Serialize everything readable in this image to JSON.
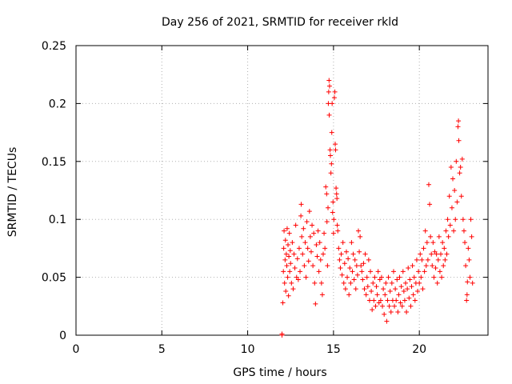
{
  "chart_data": {
    "type": "scatter",
    "title": "Day 256 of 2021, SRMTID for receiver rkld",
    "xlabel": "GPS time / hours",
    "ylabel": "SRMTID / TECUs",
    "xlim": [
      0,
      24
    ],
    "ylim": [
      0,
      0.25
    ],
    "xticks": [
      0,
      5,
      10,
      15,
      20
    ],
    "xtick_labels": [
      "0",
      "5",
      "10",
      "15",
      "20"
    ],
    "yticks": [
      0,
      0.05,
      0.1,
      0.15,
      0.2,
      0.25
    ],
    "ytick_labels": [
      "0",
      "0.05",
      "0.1",
      "0.15",
      "0.2",
      "0.25"
    ],
    "grid": true,
    "marker": "plus",
    "marker_color": "#ff0000",
    "series": [
      {
        "name": "rkld",
        "points": [
          [
            12.0,
            0.0
          ],
          [
            12.0,
            0.001
          ],
          [
            12.05,
            0.028
          ],
          [
            12.08,
            0.055
          ],
          [
            12.1,
            0.075
          ],
          [
            12.12,
            0.09
          ],
          [
            12.15,
            0.045
          ],
          [
            12.18,
            0.065
          ],
          [
            12.2,
            0.082
          ],
          [
            12.22,
            0.038
          ],
          [
            12.25,
            0.07
          ],
          [
            12.28,
            0.06
          ],
          [
            12.3,
            0.092
          ],
          [
            12.33,
            0.05
          ],
          [
            12.35,
            0.078
          ],
          [
            12.38,
            0.034
          ],
          [
            12.4,
            0.068
          ],
          [
            12.43,
            0.088
          ],
          [
            12.45,
            0.055
          ],
          [
            12.48,
            0.073
          ],
          [
            12.5,
            0.062
          ],
          [
            12.55,
            0.045
          ],
          [
            12.6,
            0.08
          ],
          [
            12.65,
            0.04
          ],
          [
            12.7,
            0.07
          ],
          [
            12.75,
            0.058
          ],
          [
            12.8,
            0.095
          ],
          [
            12.85,
            0.05
          ],
          [
            12.9,
            0.066
          ],
          [
            12.95,
            0.048
          ],
          [
            13.0,
            0.075
          ],
          [
            13.05,
            0.055
          ],
          [
            13.1,
            0.103
          ],
          [
            13.12,
            0.113
          ],
          [
            13.15,
            0.085
          ],
          [
            13.2,
            0.07
          ],
          [
            13.25,
            0.092
          ],
          [
            13.3,
            0.06
          ],
          [
            13.35,
            0.08
          ],
          [
            13.4,
            0.05
          ],
          [
            13.45,
            0.098
          ],
          [
            13.5,
            0.075
          ],
          [
            13.55,
            0.064
          ],
          [
            13.6,
            0.107
          ],
          [
            13.65,
            0.085
          ],
          [
            13.7,
            0.072
          ],
          [
            13.75,
            0.095
          ],
          [
            13.8,
            0.06
          ],
          [
            13.85,
            0.088
          ],
          [
            13.9,
            0.045
          ],
          [
            13.95,
            0.027
          ],
          [
            14.0,
            0.078
          ],
          [
            14.05,
            0.068
          ],
          [
            14.1,
            0.09
          ],
          [
            14.15,
            0.055
          ],
          [
            14.2,
            0.08
          ],
          [
            14.25,
            0.065
          ],
          [
            14.3,
            0.045
          ],
          [
            14.35,
            0.035
          ],
          [
            14.4,
            0.07
          ],
          [
            14.45,
            0.088
          ],
          [
            14.5,
            0.075
          ],
          [
            14.55,
            0.128
          ],
          [
            14.6,
            0.122
          ],
          [
            14.62,
            0.098
          ],
          [
            14.65,
            0.06
          ],
          [
            14.68,
            0.11
          ],
          [
            14.7,
            0.2
          ],
          [
            14.72,
            0.21
          ],
          [
            14.74,
            0.22
          ],
          [
            14.75,
            0.19
          ],
          [
            14.77,
            0.215
          ],
          [
            14.8,
            0.16
          ],
          [
            14.82,
            0.155
          ],
          [
            14.85,
            0.14
          ],
          [
            14.88,
            0.148
          ],
          [
            14.9,
            0.175
          ],
          [
            14.92,
            0.2
          ],
          [
            14.95,
            0.106
          ],
          [
            14.97,
            0.115
          ],
          [
            15.0,
            0.088
          ],
          [
            15.02,
            0.1
          ],
          [
            15.05,
            0.205
          ],
          [
            15.08,
            0.21
          ],
          [
            15.1,
            0.165
          ],
          [
            15.12,
            0.16
          ],
          [
            15.15,
            0.127
          ],
          [
            15.18,
            0.122
          ],
          [
            15.2,
            0.118
          ],
          [
            15.22,
            0.095
          ],
          [
            15.25,
            0.09
          ],
          [
            15.3,
            0.075
          ],
          [
            15.35,
            0.065
          ],
          [
            15.4,
            0.058
          ],
          [
            15.45,
            0.07
          ],
          [
            15.5,
            0.052
          ],
          [
            15.55,
            0.08
          ],
          [
            15.6,
            0.045
          ],
          [
            15.65,
            0.062
          ],
          [
            15.7,
            0.04
          ],
          [
            15.75,
            0.072
          ],
          [
            15.8,
            0.05
          ],
          [
            15.85,
            0.066
          ],
          [
            15.9,
            0.035
          ],
          [
            15.95,
            0.058
          ],
          [
            16.0,
            0.045
          ],
          [
            16.05,
            0.08
          ],
          [
            16.1,
            0.055
          ],
          [
            16.15,
            0.07
          ],
          [
            16.2,
            0.048
          ],
          [
            16.25,
            0.065
          ],
          [
            16.3,
            0.04
          ],
          [
            16.35,
            0.06
          ],
          [
            16.4,
            0.052
          ],
          [
            16.45,
            0.09
          ],
          [
            16.5,
            0.072
          ],
          [
            16.55,
            0.085
          ],
          [
            16.6,
            0.06
          ],
          [
            16.65,
            0.055
          ],
          [
            16.7,
            0.048
          ],
          [
            16.75,
            0.062
          ],
          [
            16.8,
            0.04
          ],
          [
            16.85,
            0.07
          ],
          [
            16.9,
            0.035
          ],
          [
            16.95,
            0.05
          ],
          [
            17.0,
            0.042
          ],
          [
            17.05,
            0.065
          ],
          [
            17.1,
            0.03
          ],
          [
            17.15,
            0.055
          ],
          [
            17.2,
            0.038
          ],
          [
            17.25,
            0.022
          ],
          [
            17.3,
            0.045
          ],
          [
            17.35,
            0.03
          ],
          [
            17.4,
            0.05
          ],
          [
            17.45,
            0.025
          ],
          [
            17.5,
            0.042
          ],
          [
            17.55,
            0.035
          ],
          [
            17.6,
            0.055
          ],
          [
            17.65,
            0.028
          ],
          [
            17.7,
            0.048
          ],
          [
            17.75,
            0.03
          ],
          [
            17.8,
            0.05
          ],
          [
            17.85,
            0.025
          ],
          [
            17.9,
            0.04
          ],
          [
            17.95,
            0.018
          ],
          [
            18.0,
            0.035
          ],
          [
            18.05,
            0.045
          ],
          [
            18.1,
            0.012
          ],
          [
            18.15,
            0.03
          ],
          [
            18.2,
            0.05
          ],
          [
            18.25,
            0.025
          ],
          [
            18.3,
            0.038
          ],
          [
            18.35,
            0.02
          ],
          [
            18.4,
            0.045
          ],
          [
            18.45,
            0.03
          ],
          [
            18.5,
            0.055
          ],
          [
            18.55,
            0.025
          ],
          [
            18.6,
            0.04
          ],
          [
            18.65,
            0.03
          ],
          [
            18.7,
            0.048
          ],
          [
            18.75,
            0.02
          ],
          [
            18.8,
            0.035
          ],
          [
            18.85,
            0.05
          ],
          [
            18.9,
            0.028
          ],
          [
            18.95,
            0.042
          ],
          [
            19.0,
            0.025
          ],
          [
            19.05,
            0.055
          ],
          [
            19.1,
            0.038
          ],
          [
            19.15,
            0.03
          ],
          [
            19.2,
            0.045
          ],
          [
            19.25,
            0.02
          ],
          [
            19.3,
            0.04
          ],
          [
            19.35,
            0.058
          ],
          [
            19.4,
            0.032
          ],
          [
            19.45,
            0.048
          ],
          [
            19.5,
            0.025
          ],
          [
            19.55,
            0.042
          ],
          [
            19.6,
            0.06
          ],
          [
            19.65,
            0.035
          ],
          [
            19.7,
            0.05
          ],
          [
            19.75,
            0.03
          ],
          [
            19.8,
            0.045
          ],
          [
            19.85,
            0.065
          ],
          [
            19.9,
            0.038
          ],
          [
            19.95,
            0.055
          ],
          [
            20.0,
            0.045
          ],
          [
            20.05,
            0.07
          ],
          [
            20.1,
            0.05
          ],
          [
            20.15,
            0.065
          ],
          [
            20.2,
            0.04
          ],
          [
            20.25,
            0.075
          ],
          [
            20.3,
            0.055
          ],
          [
            20.35,
            0.09
          ],
          [
            20.4,
            0.06
          ],
          [
            20.45,
            0.08
          ],
          [
            20.5,
            0.065
          ],
          [
            20.55,
            0.13
          ],
          [
            20.6,
            0.113
          ],
          [
            20.65,
            0.085
          ],
          [
            20.7,
            0.07
          ],
          [
            20.75,
            0.06
          ],
          [
            20.8,
            0.08
          ],
          [
            20.85,
            0.05
          ],
          [
            20.9,
            0.072
          ],
          [
            20.95,
            0.058
          ],
          [
            21.0,
            0.07
          ],
          [
            21.05,
            0.045
          ],
          [
            21.1,
            0.065
          ],
          [
            21.15,
            0.085
          ],
          [
            21.2,
            0.055
          ],
          [
            21.25,
            0.07
          ],
          [
            21.3,
            0.05
          ],
          [
            21.35,
            0.08
          ],
          [
            21.4,
            0.06
          ],
          [
            21.45,
            0.075
          ],
          [
            21.5,
            0.065
          ],
          [
            21.55,
            0.09
          ],
          [
            21.6,
            0.07
          ],
          [
            21.65,
            0.1
          ],
          [
            21.7,
            0.085
          ],
          [
            21.75,
            0.12
          ],
          [
            21.8,
            0.095
          ],
          [
            21.85,
            0.145
          ],
          [
            21.9,
            0.11
          ],
          [
            21.95,
            0.135
          ],
          [
            22.0,
            0.09
          ],
          [
            22.05,
            0.125
          ],
          [
            22.1,
            0.1
          ],
          [
            22.15,
            0.15
          ],
          [
            22.2,
            0.115
          ],
          [
            22.25,
            0.18
          ],
          [
            22.28,
            0.185
          ],
          [
            22.3,
            0.168
          ],
          [
            22.35,
            0.14
          ],
          [
            22.4,
            0.145
          ],
          [
            22.45,
            0.12
          ],
          [
            22.5,
            0.152
          ],
          [
            22.55,
            0.1
          ],
          [
            22.6,
            0.09
          ],
          [
            22.65,
            0.08
          ],
          [
            22.7,
            0.06
          ],
          [
            22.75,
            0.03
          ],
          [
            22.78,
            0.035
          ],
          [
            22.8,
            0.046
          ],
          [
            22.85,
            0.075
          ],
          [
            22.9,
            0.065
          ],
          [
            22.95,
            0.05
          ],
          [
            23.0,
            0.1
          ],
          [
            23.05,
            0.085
          ],
          [
            23.1,
            0.045
          ]
        ]
      }
    ]
  }
}
